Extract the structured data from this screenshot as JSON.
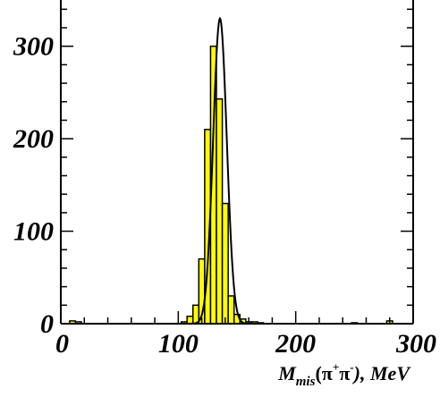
{
  "chart_data": {
    "type": "bar",
    "title": "",
    "xlabel": {
      "main": "M",
      "sub": "mis",
      "open": "(",
      "pi": "π",
      "plus": "+",
      "minus": "-",
      "close": "), MeV"
    },
    "ylabel": "",
    "xlim": [
      0,
      300
    ],
    "ylim": [
      0,
      350
    ],
    "xticks": [
      {
        "value": 0,
        "label": "0"
      },
      {
        "value": 100,
        "label": "100"
      },
      {
        "value": 200,
        "label": "200"
      },
      {
        "value": 300,
        "label": "300"
      }
    ],
    "yticks": [
      {
        "value": 0,
        "label": "0"
      },
      {
        "value": 100,
        "label": "100"
      },
      {
        "value": 200,
        "label": "200"
      },
      {
        "value": 300,
        "label": "300"
      }
    ],
    "bin_width": 5,
    "histogram": {
      "name": "",
      "fill": "#ffff00",
      "stroke": "#000000",
      "bins": [
        {
          "x": 10,
          "y": 3
        },
        {
          "x": 15,
          "y": 2
        },
        {
          "x": 105,
          "y": 2
        },
        {
          "x": 110,
          "y": 8
        },
        {
          "x": 115,
          "y": 20
        },
        {
          "x": 120,
          "y": 70
        },
        {
          "x": 125,
          "y": 210
        },
        {
          "x": 130,
          "y": 300
        },
        {
          "x": 135,
          "y": 243
        },
        {
          "x": 140,
          "y": 130
        },
        {
          "x": 145,
          "y": 30
        },
        {
          "x": 150,
          "y": 10
        },
        {
          "x": 155,
          "y": 5
        },
        {
          "x": 160,
          "y": 2
        },
        {
          "x": 165,
          "y": 2
        },
        {
          "x": 170,
          "y": 1
        },
        {
          "x": 250,
          "y": 1
        },
        {
          "x": 280,
          "y": 3
        }
      ]
    },
    "fit": {
      "name": "",
      "type": "gaussian",
      "amplitude": 330,
      "mean": 135.5,
      "sigma": 5.8,
      "xrange": [
        100,
        300
      ],
      "stroke": "#000000"
    },
    "grid": false,
    "legend": "none"
  }
}
